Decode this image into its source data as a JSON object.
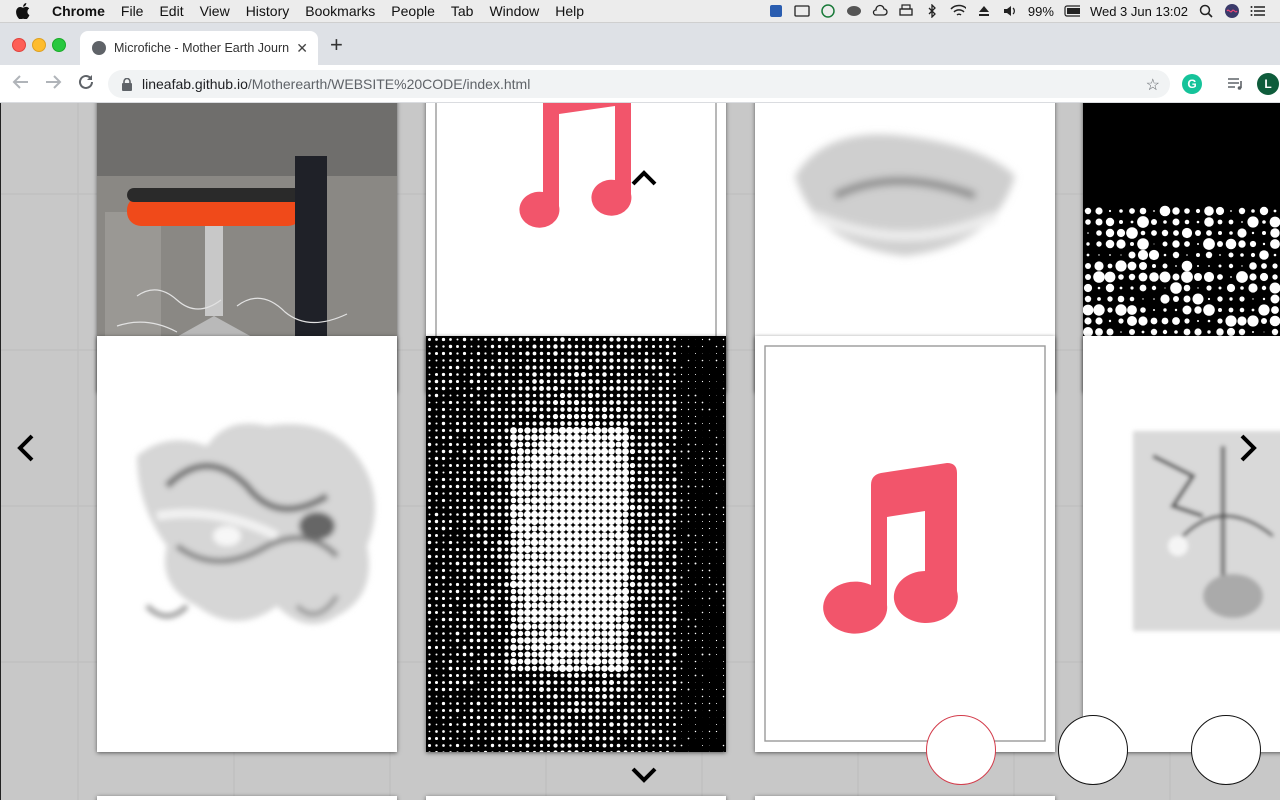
{
  "menubar": {
    "app_name": "Chrome",
    "menus": [
      "File",
      "Edit",
      "View",
      "History",
      "Bookmarks",
      "People",
      "Tab",
      "Window",
      "Help"
    ],
    "battery": "99%",
    "datetime": "Wed 3 Jun  13:02"
  },
  "browser": {
    "tab_title": "Microfiche - Mother Earth Journ",
    "url_host": "lineafab.github.io",
    "url_path": "/Motherearth/WEBSITE%20CODE/index.html",
    "profile_initial": "L"
  },
  "colors": {
    "music_note": "#f2556b",
    "active_dot": "#d33b4a"
  },
  "gallery": {
    "cards": [
      {
        "kind": "photo-chair"
      },
      {
        "kind": "music-note"
      },
      {
        "kind": "blurred-sculpture"
      },
      {
        "kind": "halftone-dots"
      },
      {
        "kind": "blurred-sculpture"
      },
      {
        "kind": "halftone-portrait"
      },
      {
        "kind": "music-note"
      },
      {
        "kind": "blurred-sculpture"
      }
    ],
    "dots": [
      {
        "active": true
      },
      {
        "active": false
      },
      {
        "active": false
      }
    ]
  }
}
